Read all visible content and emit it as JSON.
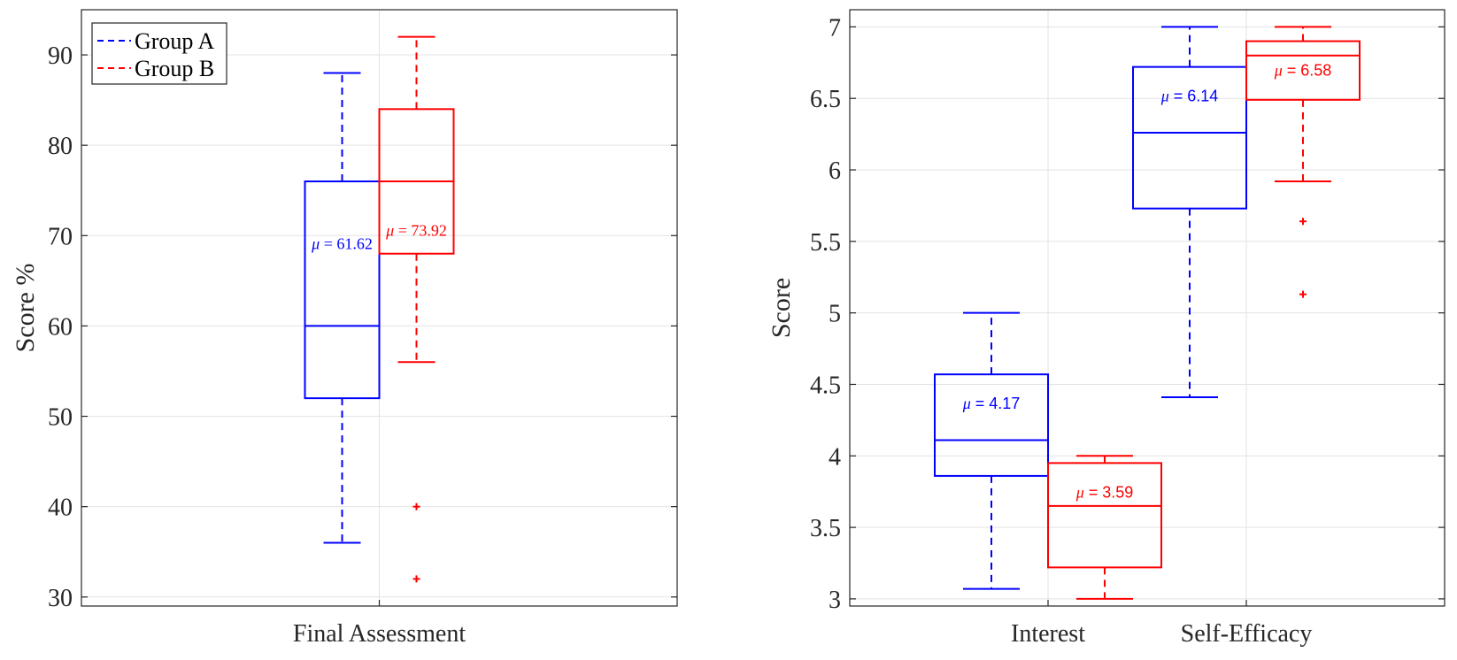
{
  "colors": {
    "group_a": "#0000ff",
    "group_b": "#ff0000",
    "grid": "#e3e3e3",
    "axis": "#262626"
  },
  "legend": {
    "items": [
      "Group A",
      "Group B"
    ],
    "placement": "top-left"
  },
  "chart_data": [
    {
      "type": "box",
      "title": "",
      "xlabel": "",
      "ylabel": "Score %",
      "ylim": [
        29,
        95
      ],
      "yticks": [
        30,
        40,
        50,
        60,
        70,
        80,
        90
      ],
      "categories": [
        "Final Assessment"
      ],
      "grid": true,
      "legend": "top-left",
      "series": [
        {
          "name": "Group A",
          "boxes": [
            {
              "category": "Final Assessment",
              "whisker_low": 36,
              "q1": 52,
              "median": 60,
              "q3": 76,
              "whisker_high": 88,
              "outliers": [],
              "mean_label": "61.62"
            }
          ]
        },
        {
          "name": "Group B",
          "boxes": [
            {
              "category": "Final Assessment",
              "whisker_low": 56,
              "q1": 68,
              "median": 76,
              "q3": 84,
              "whisker_high": 92,
              "outliers": [
                40,
                32
              ],
              "mean_label": "73.92"
            }
          ]
        }
      ]
    },
    {
      "type": "box",
      "title": "",
      "xlabel": "",
      "ylabel": "Score",
      "ylim": [
        2.95,
        7.12
      ],
      "yticks": [
        "3",
        "3.5",
        "4",
        "4.5",
        "5",
        "5.5",
        "6",
        "6.5",
        "7"
      ],
      "categories": [
        "Interest",
        "Self-Efficacy"
      ],
      "grid": true,
      "series": [
        {
          "name": "Group A",
          "boxes": [
            {
              "category": "Interest",
              "whisker_low": 3.07,
              "q1": 3.86,
              "median": 4.11,
              "q3": 4.57,
              "whisker_high": 5.0,
              "outliers": [],
              "mean_label": "4.17"
            },
            {
              "category": "Self-Efficacy",
              "whisker_low": 4.41,
              "q1": 5.73,
              "median": 6.26,
              "q3": 6.72,
              "whisker_high": 7.0,
              "outliers": [],
              "mean_label": "6.14"
            }
          ]
        },
        {
          "name": "Group B",
          "boxes": [
            {
              "category": "Interest",
              "whisker_low": 3.0,
              "q1": 3.22,
              "median": 3.65,
              "q3": 3.95,
              "whisker_high": 4.0,
              "outliers": [],
              "mean_label": "3.59"
            },
            {
              "category": "Self-Efficacy",
              "whisker_low": 5.92,
              "q1": 6.49,
              "median": 6.8,
              "q3": 6.9,
              "whisker_high": 7.0,
              "outliers": [
                5.64,
                5.13
              ],
              "mean_label": "6.58"
            }
          ]
        }
      ]
    }
  ]
}
